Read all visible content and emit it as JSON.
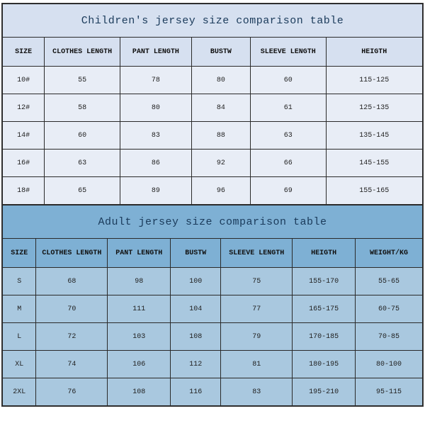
{
  "children": {
    "title": "Children's jersey size comparison table",
    "title_bg": "#d6e0f0",
    "header_bg": "#d6e0f0",
    "row_bg": "#e8edf6",
    "columns": [
      "SIZE",
      "CLOTHES LENGTH",
      "PANT LENGTH",
      "BUSTW",
      "SLEEVE LENGTH",
      "HEIGTH"
    ],
    "col_widths_pct": [
      10,
      18,
      17,
      14,
      18,
      23
    ],
    "rows": [
      [
        "10#",
        "55",
        "78",
        "80",
        "60",
        "115-125"
      ],
      [
        "12#",
        "58",
        "80",
        "84",
        "61",
        "125-135"
      ],
      [
        "14#",
        "60",
        "83",
        "88",
        "63",
        "135-145"
      ],
      [
        "16#",
        "63",
        "86",
        "92",
        "66",
        "145-155"
      ],
      [
        "18#",
        "65",
        "89",
        "96",
        "69",
        "155-165"
      ]
    ]
  },
  "adult": {
    "title": "Adult jersey size comparison table",
    "title_bg": "#7eb0d4",
    "header_bg": "#7eb0d4",
    "row_bg": "#a9c8df",
    "columns": [
      "SIZE",
      "CLOTHES LENGTH",
      "PANT LENGTH",
      "BUSTW",
      "SLEEVE LENGTH",
      "HEIGTH",
      "WEIGHT/KG"
    ],
    "col_widths_pct": [
      8,
      17,
      15,
      12,
      17,
      15,
      16
    ],
    "rows": [
      [
        "S",
        "68",
        "98",
        "100",
        "75",
        "155-170",
        "55-65"
      ],
      [
        "M",
        "70",
        "111",
        "104",
        "77",
        "165-175",
        "60-75"
      ],
      [
        "L",
        "72",
        "103",
        "108",
        "79",
        "170-185",
        "70-85"
      ],
      [
        "XL",
        "74",
        "106",
        "112",
        "81",
        "180-195",
        "80-100"
      ],
      [
        "2XL",
        "76",
        "108",
        "116",
        "83",
        "195-210",
        "95-115"
      ]
    ]
  }
}
